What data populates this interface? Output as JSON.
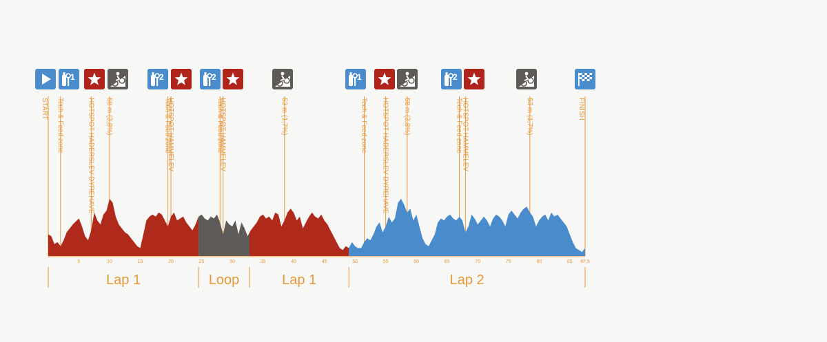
{
  "colors": {
    "lap1": "#b02a1c",
    "loop": "#5e5a57",
    "lap2": "#4a8ccb",
    "accent": "#e8983a",
    "icon_blue": "#4a8ccb",
    "icon_red": "#b0241b",
    "icon_gray": "#5e5a57"
  },
  "chart_data": {
    "type": "area",
    "xlabel": "",
    "ylabel": "",
    "xlim": [
      0,
      87.5
    ],
    "x_ticks": [
      "5",
      "10",
      "15",
      "20",
      "25",
      "30",
      "35",
      "40",
      "45",
      "50",
      "55",
      "60",
      "65",
      "70",
      "75",
      "80",
      "85",
      "87,5"
    ],
    "x_tick_values": [
      5,
      10,
      15,
      20,
      25,
      30,
      35,
      40,
      45,
      50,
      55,
      60,
      65,
      70,
      75,
      80,
      85,
      87.5
    ],
    "elevation_profile": {
      "x_km": [
        0,
        0.5,
        1,
        1.5,
        2,
        2.5,
        3,
        3.5,
        4,
        4.5,
        5,
        5.5,
        6,
        6.5,
        7,
        7.5,
        8,
        8.5,
        9,
        9.5,
        10,
        10.5,
        11,
        11.5,
        12,
        12.5,
        13,
        13.5,
        14,
        14.5,
        15,
        15.5,
        16,
        16.5,
        17,
        17.5,
        18,
        18.5,
        19,
        19.5,
        20,
        20.5,
        21,
        21.5,
        22,
        22.5,
        23,
        23.5,
        24,
        24.5,
        25,
        25.5,
        26,
        26.5,
        27,
        27.5,
        28,
        28.5,
        29,
        29.5,
        30,
        30.5,
        31,
        31.5,
        32,
        32.5,
        33,
        33.5,
        34,
        34.5,
        35,
        35.5,
        36,
        36.5,
        37,
        37.5,
        38,
        38.5,
        39,
        39.5,
        40,
        40.5,
        41,
        41.5,
        42,
        42.5,
        43,
        43.5,
        44,
        44.5,
        45,
        45.5,
        46,
        46.5,
        47,
        47.5,
        48,
        48.5,
        49,
        49.5,
        50,
        50.5,
        51,
        51.5,
        52,
        52.5,
        53,
        53.5,
        54,
        54.5,
        55,
        55.5,
        56,
        56.5,
        57,
        57.5,
        58,
        58.5,
        59,
        59.5,
        60,
        60.5,
        61,
        61.5,
        62,
        62.5,
        63,
        63.5,
        64,
        64.5,
        65,
        65.5,
        66,
        66.5,
        67,
        67.5,
        68,
        68.5,
        69,
        69.5,
        70,
        70.5,
        71,
        71.5,
        72,
        72.5,
        73,
        73.5,
        74,
        74.5,
        75,
        75.5,
        76,
        76.5,
        77,
        77.5,
        78,
        78.5,
        79,
        79.5,
        80,
        80.5,
        81,
        81.5,
        82,
        82.5,
        83,
        83.5,
        84,
        84.5,
        85,
        85.5,
        86,
        86.5,
        87,
        87.5
      ],
      "elev_m": [
        22,
        20,
        12,
        14,
        10,
        16,
        24,
        28,
        32,
        35,
        38,
        30,
        20,
        16,
        26,
        44,
        36,
        32,
        42,
        46,
        58,
        54,
        40,
        32,
        28,
        24,
        22,
        18,
        14,
        10,
        8,
        22,
        36,
        40,
        42,
        40,
        44,
        42,
        36,
        30,
        40,
        44,
        36,
        38,
        40,
        34,
        30,
        26,
        32,
        40,
        42,
        38,
        36,
        40,
        38,
        42,
        34,
        22,
        36,
        32,
        30,
        36,
        22,
        34,
        28,
        20,
        26,
        30,
        34,
        40,
        42,
        38,
        40,
        36,
        44,
        42,
        30,
        36,
        44,
        48,
        44,
        36,
        40,
        28,
        34,
        40,
        44,
        40,
        38,
        42,
        36,
        32,
        26,
        20,
        14,
        8,
        6,
        10,
        8,
        14,
        10,
        8,
        8,
        14,
        18,
        16,
        22,
        30,
        34,
        24,
        30,
        40,
        34,
        38,
        54,
        58,
        52,
        44,
        48,
        36,
        42,
        30,
        18,
        12,
        10,
        16,
        22,
        34,
        38,
        36,
        40,
        42,
        38,
        36,
        40,
        36,
        24,
        30,
        42,
        38,
        32,
        36,
        40,
        36,
        30,
        38,
        42,
        40,
        36,
        30,
        42,
        46,
        42,
        38,
        44,
        48,
        50,
        44,
        40,
        30,
        36,
        40,
        42,
        36,
        44,
        40,
        42,
        38,
        34,
        30,
        22,
        14,
        8,
        6,
        4,
        8
      ]
    },
    "segments": [
      {
        "label": "Lap 1",
        "from": 0,
        "to": 24.5,
        "color": "#b02a1c"
      },
      {
        "label": "Loop",
        "from": 24.5,
        "to": 32.8,
        "color": "#5e5a57"
      },
      {
        "label": "Lap 1",
        "from": 32.8,
        "to": 49,
        "color": "#b02a1c"
      },
      {
        "label": "Lap 2",
        "from": 49,
        "to": 87.5,
        "color": "#4a8ccb"
      }
    ],
    "segment_boundaries": [
      0,
      24.5,
      32.8,
      49,
      87.5
    ],
    "markers": [
      {
        "km": 0,
        "label": "START"
      },
      {
        "km": 2,
        "label": "Tech & Feed zone"
      },
      {
        "km": 7,
        "label": "HOTSPOT HADERSLEV DYREHAVE"
      },
      {
        "km": 10,
        "label": "58 m (3,8%)"
      },
      {
        "km": 19.5,
        "label": "Tech & Feed zone"
      },
      {
        "km": 20,
        "label": "HOTSPOT HAMMELEV"
      },
      {
        "km": 28,
        "label": "Tech & Feed zone"
      },
      {
        "km": 28.5,
        "label": "HOTSPOT HAMMELEV"
      },
      {
        "km": 38.5,
        "label": "53 m (1,7%)"
      },
      {
        "km": 51.5,
        "label": "Tech & Feed zone"
      },
      {
        "km": 55,
        "label": "HOTSPOT HADERSLEV DYREHAVE"
      },
      {
        "km": 58.5,
        "label": "58 m (3,8%)"
      },
      {
        "km": 67,
        "label": "Tech & Feed zone"
      },
      {
        "km": 68,
        "label": "HOTSPOT HAMMELEV"
      },
      {
        "km": 78.5,
        "label": "53 m (1,7%)"
      },
      {
        "km": 87.5,
        "label": "FINISH"
      }
    ]
  },
  "icons": [
    {
      "name": "start-play-icon",
      "symbol": "play",
      "color": "#4a8ccb"
    },
    {
      "name": "feed-zone-1-icon",
      "symbol": "bottle-wrench",
      "num": "1",
      "color": "#4a8ccb"
    },
    {
      "name": "hotspot-star-icon",
      "symbol": "star",
      "color": "#b0241b"
    },
    {
      "name": "climb-cyclist-icon",
      "symbol": "climb",
      "color": "#5e5a57"
    },
    {
      "name": "feed-zone-2-icon",
      "symbol": "bottle-wrench",
      "num": "2",
      "color": "#4a8ccb"
    },
    {
      "name": "hotspot-star-icon",
      "symbol": "star",
      "color": "#b0241b"
    },
    {
      "name": "feed-zone-2-icon",
      "symbol": "bottle-wrench",
      "num": "2",
      "color": "#4a8ccb"
    },
    {
      "name": "hotspot-star-icon",
      "symbol": "star",
      "color": "#b0241b"
    },
    {
      "name": "climb-cyclist-icon",
      "symbol": "climb",
      "color": "#5e5a57"
    },
    {
      "name": "feed-zone-1-icon",
      "symbol": "bottle-wrench",
      "num": "1",
      "color": "#4a8ccb"
    },
    {
      "name": "hotspot-star-icon",
      "symbol": "star",
      "color": "#b0241b"
    },
    {
      "name": "climb-cyclist-icon",
      "symbol": "climb",
      "color": "#5e5a57"
    },
    {
      "name": "feed-zone-2-icon",
      "symbol": "bottle-wrench",
      "num": "2",
      "color": "#4a8ccb"
    },
    {
      "name": "hotspot-star-icon",
      "symbol": "star",
      "color": "#b0241b"
    },
    {
      "name": "climb-cyclist-icon",
      "symbol": "climb",
      "color": "#5e5a57"
    },
    {
      "name": "finish-flag-icon",
      "symbol": "flag",
      "color": "#4a8ccb"
    }
  ]
}
